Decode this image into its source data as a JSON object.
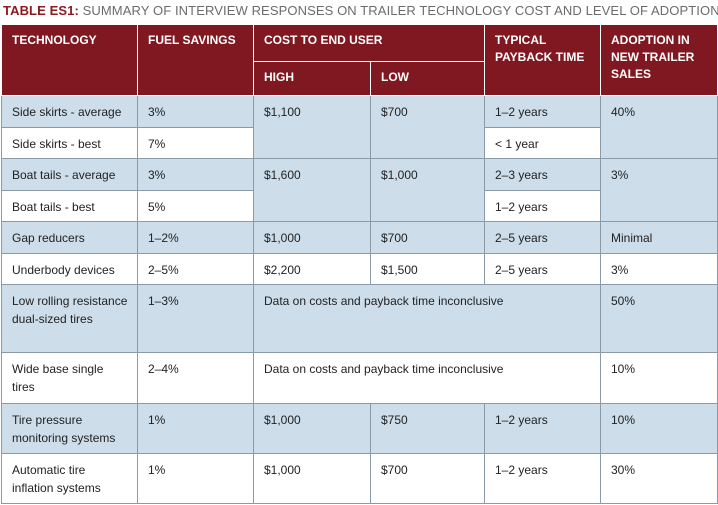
{
  "caption": {
    "label": "TABLE ES1:",
    "text": "SUMMARY OF INTERVIEW RESPONSES ON TRAILER TECHNOLOGY COST AND LEVEL OF ADOPTION"
  },
  "headers": {
    "technology": "TECHNOLOGY",
    "fuel_savings": "FUEL SAVINGS",
    "cost_to_end_user": "COST TO END USER",
    "high": "HIGH",
    "low": "LOW",
    "payback": "TYPICAL PAYBACK TIME",
    "adoption": "ADOPTION IN NEW TRAILER SALES"
  },
  "rows": [
    {
      "technology": "Side skirts - average",
      "fuel_savings": "3%",
      "cost_high": "$1,100",
      "cost_low": "$700",
      "payback": "1–2 years",
      "adoption": "40%"
    },
    {
      "technology": "Side skirts - best",
      "fuel_savings": "7%",
      "payback": "< 1 year"
    },
    {
      "technology": "Boat tails - average",
      "fuel_savings": "3%",
      "cost_high": "$1,600",
      "cost_low": "$1,000",
      "payback": "2–3 years",
      "adoption": "3%"
    },
    {
      "technology": "Boat tails - best",
      "fuel_savings": "5%",
      "payback": "1–2 years"
    },
    {
      "technology": "Gap reducers",
      "fuel_savings": "1–2%",
      "cost_high": "$1,000",
      "cost_low": "$700",
      "payback": "2–5 years",
      "adoption": "Minimal"
    },
    {
      "technology": "Underbody devices",
      "fuel_savings": "2–5%",
      "cost_high": "$2,200",
      "cost_low": "$1,500",
      "payback": "2–5 years",
      "adoption": "3%"
    },
    {
      "technology": "Low rolling resistance dual-sized tires",
      "fuel_savings": "1–3%",
      "note": "Data on costs and payback time inconclusive",
      "adoption": "50%"
    },
    {
      "technology": "Wide base single tires",
      "fuel_savings": "2–4%",
      "note": "Data on costs and payback time inconclusive",
      "adoption": "10%"
    },
    {
      "technology": "Tire pressure monitoring systems",
      "fuel_savings": "1%",
      "cost_high": "$1,000",
      "cost_low": "$750",
      "payback": "1–2 years",
      "adoption": "10%"
    },
    {
      "technology": "Automatic tire inflation systems",
      "fuel_savings": "1%",
      "cost_high": "$1,000",
      "cost_low": "$700",
      "payback": "1–2 years",
      "adoption": "30%"
    }
  ]
}
